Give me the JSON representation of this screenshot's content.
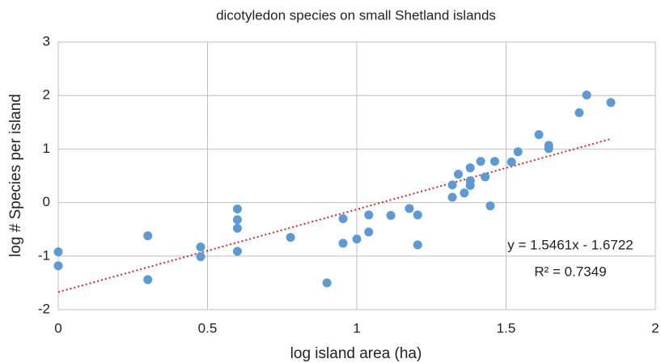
{
  "chart_data": {
    "type": "scatter",
    "title": "dicotyledon species on small Shetland islands",
    "x_label": "log island area (ha)",
    "y_label": "log # Species per island",
    "series": [
      {
        "color": "#5b9bd5",
        "x": [
          0,
          0,
          0.3,
          0.3,
          0.477,
          0.477,
          0.6,
          0.6,
          0.6,
          0.6,
          0.778,
          0.9,
          0.954,
          0.954,
          1.0,
          1.04,
          1.04,
          1.114,
          1.176,
          1.204,
          1.204,
          1.32,
          1.32,
          1.34,
          1.36,
          1.38,
          1.38,
          1.38,
          1.415,
          1.43,
          1.447,
          1.462,
          1.518,
          1.54,
          1.61,
          1.643,
          1.643,
          1.745,
          1.77,
          1.851
        ],
        "values": [
          -0.92,
          -1.18,
          -0.62,
          -1.44,
          -0.83,
          -1.01,
          -0.12,
          -0.32,
          -0.48,
          -0.91,
          -0.65,
          -1.5,
          -0.3,
          -0.76,
          -0.68,
          -0.23,
          -0.55,
          -0.24,
          -0.11,
          -0.23,
          -0.79,
          0.33,
          0.1,
          0.53,
          0.18,
          0.41,
          0.32,
          0.65,
          0.77,
          0.48,
          -0.06,
          0.77,
          0.76,
          0.95,
          1.27,
          1.07,
          1.01,
          1.68,
          2.01,
          1.87
        ]
      }
    ],
    "trendline": {
      "slope": 1.5461,
      "intercept": -1.6722,
      "color": "#e02020"
    },
    "annotations": [
      "y = 1.5461x - 1.6722",
      "R² = 0.7349"
    ],
    "xlim": [
      0,
      2
    ],
    "xticks": [
      0,
      0.5,
      1,
      1.5,
      2
    ],
    "ylim": [
      -2,
      3
    ],
    "yticks": [
      -2,
      -1,
      0,
      1,
      2,
      3
    ],
    "grid": true
  }
}
